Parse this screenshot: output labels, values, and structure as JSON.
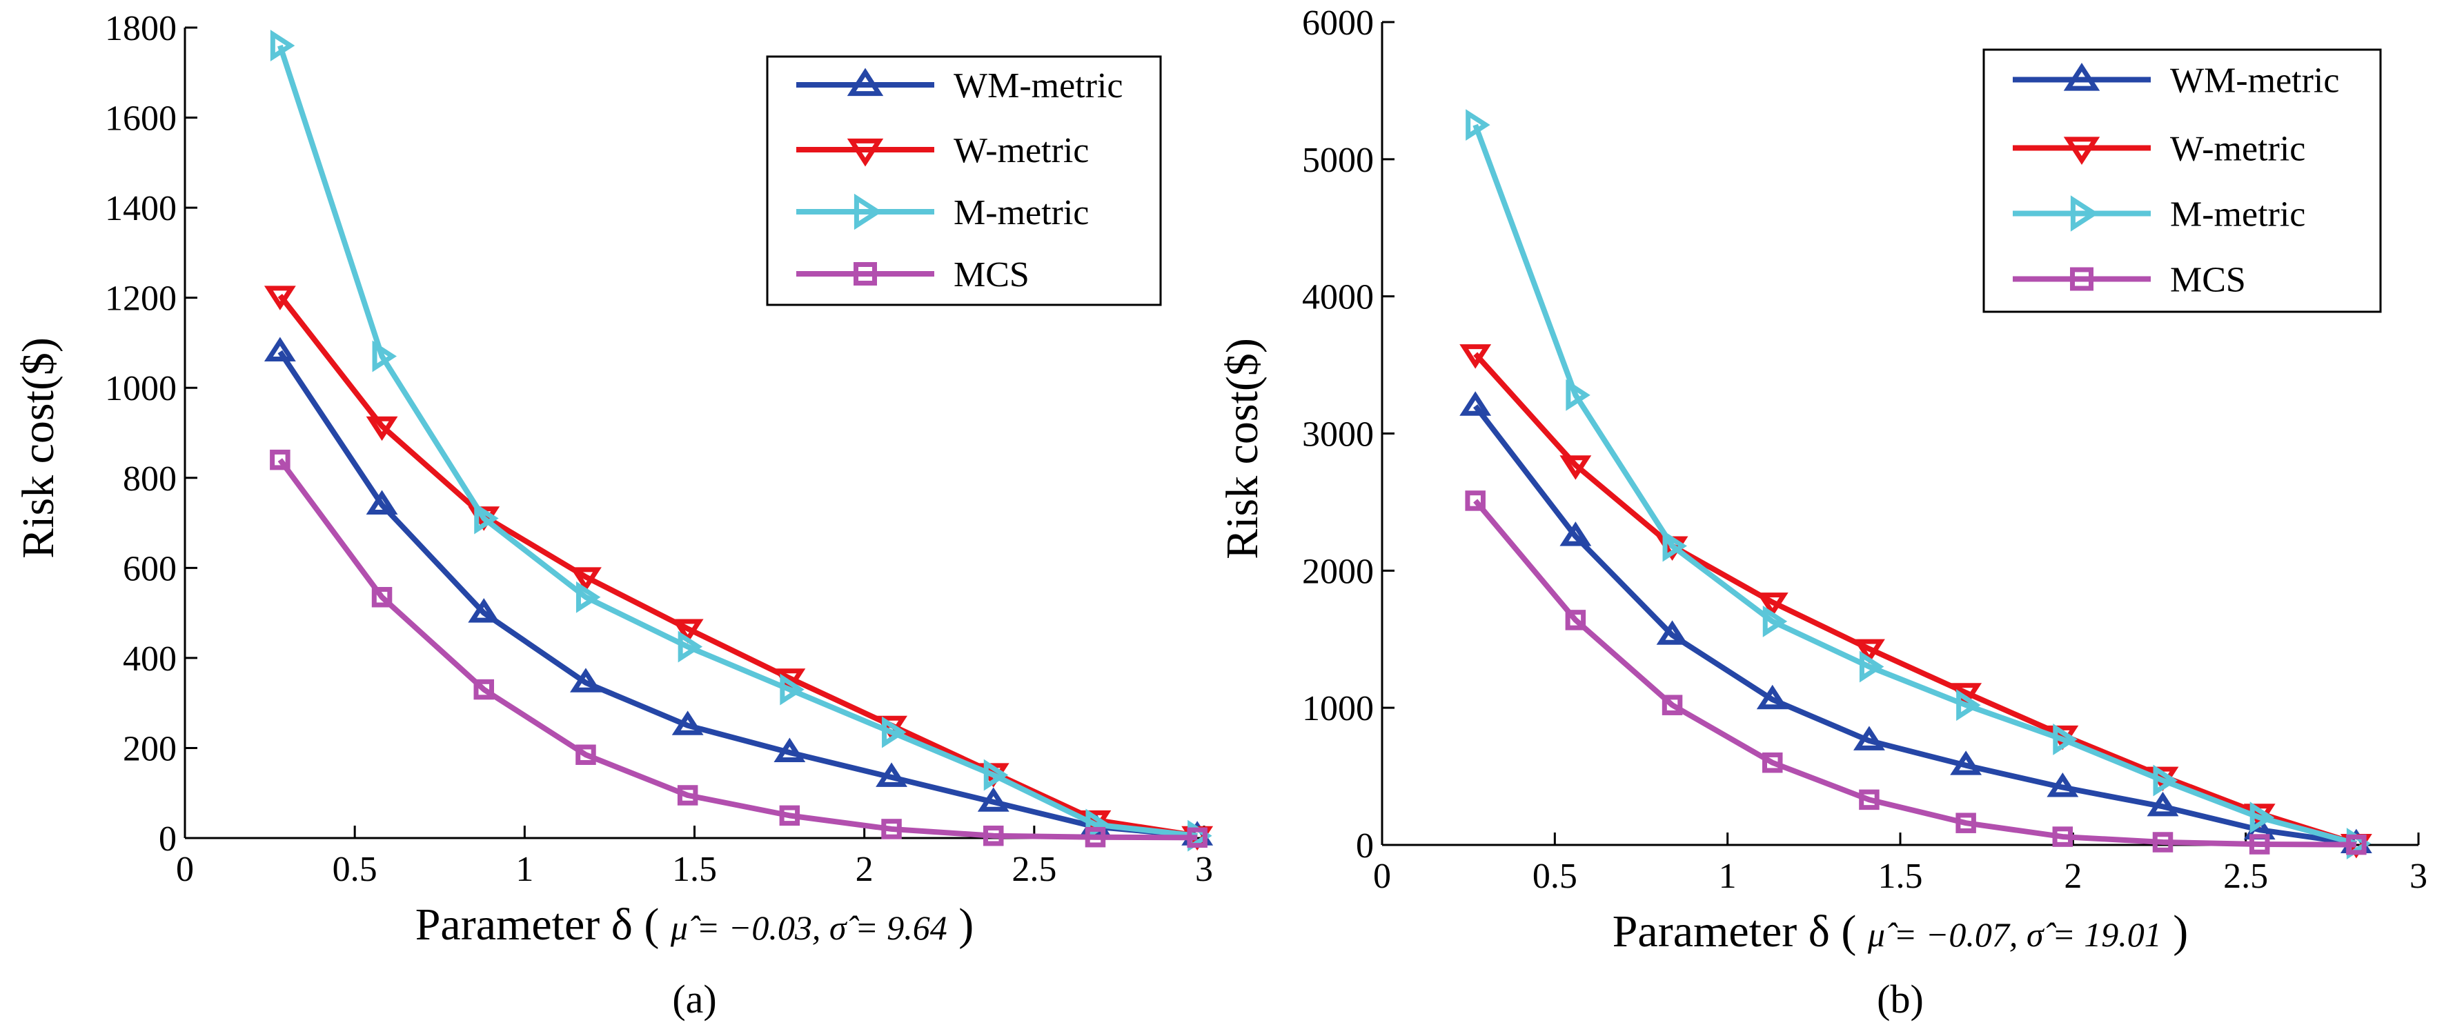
{
  "chart_data": [
    {
      "type": "line",
      "panel_label": "(a)",
      "xlabel_prefix": "Parameter δ (",
      "xlabel_params": "μ̂ = −0.03, σ̂ = 9.64",
      "xlabel_suffix": ")",
      "ylabel": "Risk cost($)",
      "xlim": [
        0,
        3
      ],
      "ylim": [
        0,
        1800
      ],
      "xticks": [
        0,
        0.5,
        1,
        1.5,
        2,
        2.5,
        3
      ],
      "xtick_labels": [
        "0",
        "0.5",
        "1",
        "1.5",
        "2",
        "2.5",
        "3"
      ],
      "yticks": [
        0,
        200,
        400,
        600,
        800,
        1000,
        1200,
        1400,
        1600,
        1800
      ],
      "ytick_labels": [
        "0",
        "200",
        "400",
        "600",
        "800",
        "1000",
        "1200",
        "1400",
        "1600",
        "1800"
      ],
      "x": [
        0.28,
        0.58,
        0.88,
        1.18,
        1.48,
        1.78,
        2.08,
        2.38,
        2.68,
        2.98
      ],
      "series": [
        {
          "name": "WM-metric",
          "color": "#2546a6",
          "marker": "triangle-up",
          "values": [
            1080,
            740,
            500,
            345,
            250,
            190,
            135,
            80,
            25,
            5
          ]
        },
        {
          "name": "W-metric",
          "color": "#e8131a",
          "marker": "triangle-down",
          "values": [
            1205,
            915,
            715,
            580,
            465,
            355,
            250,
            145,
            40,
            5
          ]
        },
        {
          "name": "M-metric",
          "color": "#5bc6d9",
          "marker": "triangle-right",
          "values": [
            1760,
            1070,
            710,
            535,
            425,
            330,
            235,
            140,
            30,
            5
          ]
        },
        {
          "name": "MCS",
          "color": "#b24fae",
          "marker": "square",
          "values": [
            840,
            535,
            330,
            185,
            95,
            50,
            20,
            5,
            2,
            1
          ]
        }
      ],
      "legend_position": "top-right"
    },
    {
      "type": "line",
      "panel_label": "(b)",
      "xlabel_prefix": "Parameter δ (",
      "xlabel_params": "μ̂ = −0.07, σ̂ = 19.01",
      "xlabel_suffix": ")",
      "ylabel": "Risk cost($)",
      "xlim": [
        0,
        3
      ],
      "ylim": [
        0,
        6000
      ],
      "xticks": [
        0,
        0.5,
        1,
        1.5,
        2,
        2.5,
        3
      ],
      "xtick_labels": [
        "0",
        "0.5",
        "1",
        "1.5",
        "2",
        "2.5",
        "3"
      ],
      "yticks": [
        0,
        1000,
        2000,
        3000,
        4000,
        5000,
        6000
      ],
      "ytick_labels": [
        "0",
        "1000",
        "2000",
        "3000",
        "4000",
        "5000",
        "6000"
      ],
      "x": [
        0.27,
        0.56,
        0.84,
        1.13,
        1.41,
        1.69,
        1.97,
        2.26,
        2.54,
        2.82
      ],
      "series": [
        {
          "name": "WM-metric",
          "color": "#2546a6",
          "marker": "triangle-up",
          "values": [
            3200,
            2250,
            1530,
            1060,
            760,
            580,
            420,
            280,
            110,
            10
          ]
        },
        {
          "name": "W-metric",
          "color": "#e8131a",
          "marker": "triangle-down",
          "values": [
            3580,
            2770,
            2180,
            1770,
            1430,
            1110,
            800,
            500,
            230,
            10
          ]
        },
        {
          "name": "M-metric",
          "color": "#5bc6d9",
          "marker": "triangle-right",
          "values": [
            5250,
            3280,
            2180,
            1630,
            1300,
            1020,
            770,
            470,
            200,
            10
          ]
        },
        {
          "name": "MCS",
          "color": "#b24fae",
          "marker": "square",
          "values": [
            2510,
            1640,
            1020,
            600,
            330,
            160,
            60,
            20,
            5,
            2
          ]
        }
      ],
      "legend_position": "top-right"
    }
  ]
}
